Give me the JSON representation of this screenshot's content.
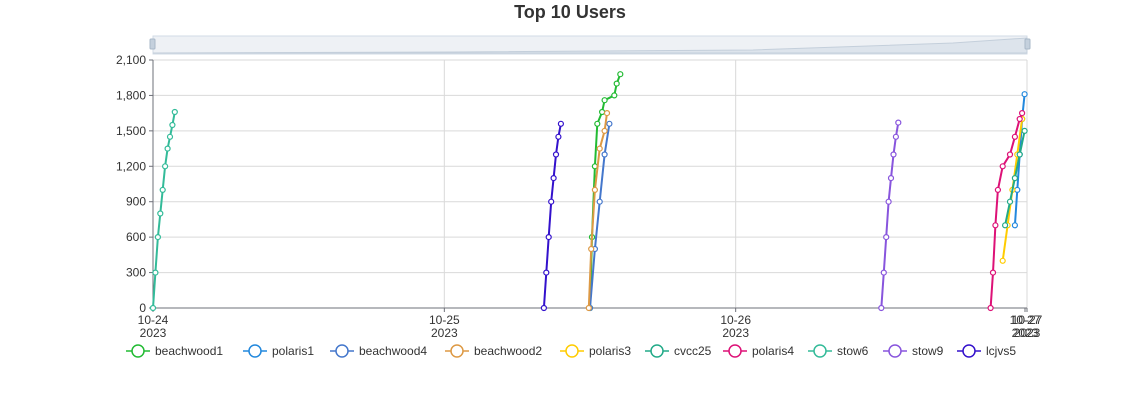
{
  "chart_data": {
    "type": "line",
    "title": "Top 10 Users",
    "xlabel": "",
    "ylabel": "",
    "xlim": [
      "2023-10-24 00:00",
      "2023-10-27 00:00"
    ],
    "ylim": [
      0,
      2100
    ],
    "x_ticks": [
      {
        "date": "10-24",
        "year": "2023"
      },
      {
        "date": "10-25",
        "year": "2023"
      },
      {
        "date": "10-26",
        "year": "2023"
      },
      {
        "date": "10-27",
        "year": "2023"
      },
      {
        "date": "10-27",
        "year": "2023"
      }
    ],
    "y_ticks": [
      "0",
      "300",
      "600",
      "900",
      "1,200",
      "1,500",
      "1,800",
      "2,100"
    ],
    "grid": true,
    "legend_position": "bottom",
    "data_zoom_slider": true,
    "series": [
      {
        "name": "beachwood1",
        "color": "#22bb33",
        "points": [
          [
            "2023-10-25 12:00",
            0
          ],
          [
            "2023-10-25 12:10",
            600
          ],
          [
            "2023-10-25 12:24",
            1200
          ],
          [
            "2023-10-25 12:36",
            1560
          ],
          [
            "2023-10-25 13:00",
            1660
          ],
          [
            "2023-10-25 13:12",
            1760
          ],
          [
            "2023-10-25 14:00",
            1800
          ],
          [
            "2023-10-25 14:12",
            1900
          ],
          [
            "2023-10-25 14:30",
            1980
          ]
        ]
      },
      {
        "name": "polaris1",
        "color": "#2288dd",
        "points": [
          [
            "2023-10-26 23:00",
            700
          ],
          [
            "2023-10-26 23:12",
            1000
          ],
          [
            "2023-10-26 23:24",
            1300
          ],
          [
            "2023-10-26 23:36",
            1600
          ],
          [
            "2023-10-26 23:48",
            1810
          ]
        ]
      },
      {
        "name": "beachwood4",
        "color": "#4477cc",
        "points": [
          [
            "2023-10-25 12:00",
            0
          ],
          [
            "2023-10-25 12:24",
            500
          ],
          [
            "2023-10-25 12:48",
            900
          ],
          [
            "2023-10-25 13:12",
            1300
          ],
          [
            "2023-10-25 13:36",
            1560
          ]
        ]
      },
      {
        "name": "beachwood2",
        "color": "#dd9944",
        "points": [
          [
            "2023-10-25 11:54",
            0
          ],
          [
            "2023-10-25 12:06",
            500
          ],
          [
            "2023-10-25 12:24",
            1000
          ],
          [
            "2023-10-25 12:48",
            1350
          ],
          [
            "2023-10-25 13:12",
            1500
          ],
          [
            "2023-10-25 13:24",
            1650
          ]
        ]
      },
      {
        "name": "polaris3",
        "color": "#ffcc00",
        "points": [
          [
            "2023-10-26 22:00",
            400
          ],
          [
            "2023-10-26 22:24",
            700
          ],
          [
            "2023-10-26 22:48",
            1000
          ],
          [
            "2023-10-26 23:12",
            1300
          ],
          [
            "2023-10-26 23:36",
            1600
          ]
        ]
      },
      {
        "name": "cvcc25",
        "color": "#22aa88",
        "points": [
          [
            "2023-10-26 22:12",
            700
          ],
          [
            "2023-10-26 22:36",
            900
          ],
          [
            "2023-10-26 23:00",
            1100
          ],
          [
            "2023-10-26 23:24",
            1300
          ],
          [
            "2023-10-26 23:48",
            1500
          ]
        ]
      },
      {
        "name": "polaris4",
        "color": "#dd1177",
        "points": [
          [
            "2023-10-26 21:00",
            0
          ],
          [
            "2023-10-26 21:12",
            300
          ],
          [
            "2023-10-26 21:24",
            700
          ],
          [
            "2023-10-26 21:36",
            1000
          ],
          [
            "2023-10-26 22:00",
            1200
          ],
          [
            "2023-10-26 22:36",
            1300
          ],
          [
            "2023-10-26 23:00",
            1450
          ],
          [
            "2023-10-26 23:24",
            1600
          ],
          [
            "2023-10-26 23:36",
            1650
          ]
        ]
      },
      {
        "name": "stow6",
        "color": "#33bb99",
        "points": [
          [
            "2023-10-24 00:00",
            0
          ],
          [
            "2023-10-24 00:12",
            300
          ],
          [
            "2023-10-24 00:24",
            600
          ],
          [
            "2023-10-24 00:36",
            800
          ],
          [
            "2023-10-24 00:48",
            1000
          ],
          [
            "2023-10-24 01:00",
            1200
          ],
          [
            "2023-10-24 01:12",
            1350
          ],
          [
            "2023-10-24 01:24",
            1450
          ],
          [
            "2023-10-24 01:36",
            1550
          ],
          [
            "2023-10-24 01:48",
            1660
          ]
        ]
      },
      {
        "name": "stow9",
        "color": "#8855dd",
        "points": [
          [
            "2023-10-26 12:00",
            0
          ],
          [
            "2023-10-26 12:12",
            300
          ],
          [
            "2023-10-26 12:24",
            600
          ],
          [
            "2023-10-26 12:36",
            900
          ],
          [
            "2023-10-26 12:48",
            1100
          ],
          [
            "2023-10-26 13:00",
            1300
          ],
          [
            "2023-10-26 13:12",
            1450
          ],
          [
            "2023-10-26 13:24",
            1570
          ]
        ]
      },
      {
        "name": "lcjvs5",
        "color": "#3311cc",
        "points": [
          [
            "2023-10-25 08:12",
            0
          ],
          [
            "2023-10-25 08:24",
            300
          ],
          [
            "2023-10-25 08:36",
            600
          ],
          [
            "2023-10-25 08:48",
            900
          ],
          [
            "2023-10-25 09:00",
            1100
          ],
          [
            "2023-10-25 09:12",
            1300
          ],
          [
            "2023-10-25 09:24",
            1450
          ],
          [
            "2023-10-25 09:36",
            1560
          ]
        ]
      }
    ]
  }
}
